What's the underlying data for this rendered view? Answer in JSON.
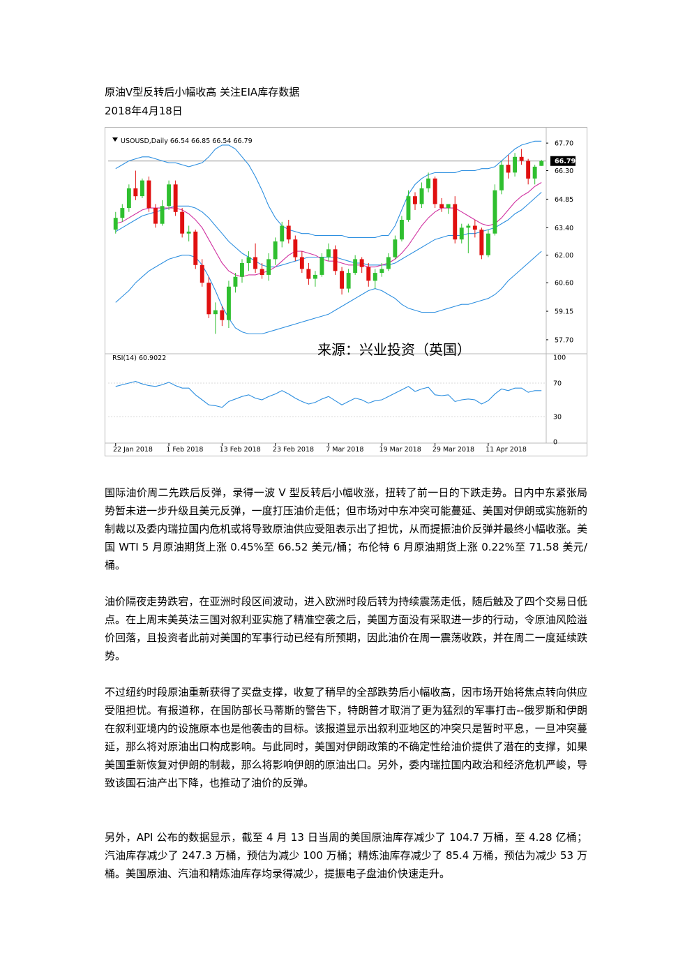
{
  "header": {
    "title": "原油V型反转后小幅收高 关注EIA库存数据",
    "date": "2018年4月18日"
  },
  "chart_data": {
    "type": "candlestick",
    "symbol_line": "USOUSD,Daily  66.54 66.85 66.54 66.79",
    "last_price_label": "66.79",
    "source_label": "来源：兴业投资（英国）",
    "price_axis_ticks": [
      "67.70",
      "66.30",
      "64.85",
      "63.40",
      "62.00",
      "60.60",
      "59.15",
      "57.70"
    ],
    "price_axis_values": [
      67.7,
      66.3,
      64.85,
      63.4,
      62.0,
      60.6,
      59.15,
      57.7
    ],
    "ylim": [
      57.2,
      68.2
    ],
    "rsi_label": "RSI(14) 60.9022",
    "rsi_ticks": [
      "100",
      "70",
      "30",
      "0"
    ],
    "rsi_values": [
      100,
      70,
      30,
      0
    ],
    "date_ticks": [
      "22 Jan 2018",
      "1 Feb 2018",
      "13 Feb 2018",
      "23 Feb 2018",
      "7 Mar 2018",
      "19 Mar 2018",
      "29 Mar 2018",
      "11 Apr 2018"
    ],
    "date_tick_index": [
      0,
      8,
      16,
      24,
      32,
      40,
      48,
      56
    ],
    "candles": [
      {
        "o": 63.3,
        "h": 64.2,
        "l": 63.1,
        "c": 63.9
      },
      {
        "o": 63.9,
        "h": 64.6,
        "l": 63.7,
        "c": 64.4
      },
      {
        "o": 64.4,
        "h": 65.6,
        "l": 64.2,
        "c": 65.4
      },
      {
        "o": 65.4,
        "h": 66.3,
        "l": 64.8,
        "c": 65.0
      },
      {
        "o": 65.0,
        "h": 65.9,
        "l": 64.9,
        "c": 65.8
      },
      {
        "o": 65.8,
        "h": 66.0,
        "l": 64.2,
        "c": 64.4
      },
      {
        "o": 64.4,
        "h": 64.6,
        "l": 63.4,
        "c": 63.6
      },
      {
        "o": 63.6,
        "h": 64.8,
        "l": 63.5,
        "c": 64.5
      },
      {
        "o": 64.5,
        "h": 65.8,
        "l": 64.3,
        "c": 65.6
      },
      {
        "o": 65.6,
        "h": 65.8,
        "l": 64.0,
        "c": 64.2
      },
      {
        "o": 64.2,
        "h": 64.4,
        "l": 62.9,
        "c": 63.1
      },
      {
        "o": 63.1,
        "h": 63.5,
        "l": 62.7,
        "c": 63.2
      },
      {
        "o": 63.2,
        "h": 63.3,
        "l": 61.3,
        "c": 61.5
      },
      {
        "o": 61.5,
        "h": 61.8,
        "l": 60.4,
        "c": 60.6
      },
      {
        "o": 60.6,
        "h": 60.9,
        "l": 58.8,
        "c": 59.0
      },
      {
        "o": 59.0,
        "h": 59.6,
        "l": 58.0,
        "c": 59.2
      },
      {
        "o": 59.2,
        "h": 59.4,
        "l": 58.4,
        "c": 58.7
      },
      {
        "o": 58.7,
        "h": 60.7,
        "l": 58.3,
        "c": 60.4
      },
      {
        "o": 60.4,
        "h": 61.1,
        "l": 60.1,
        "c": 60.9
      },
      {
        "o": 60.9,
        "h": 61.8,
        "l": 60.6,
        "c": 61.6
      },
      {
        "o": 61.6,
        "h": 62.2,
        "l": 61.2,
        "c": 61.9
      },
      {
        "o": 61.9,
        "h": 62.6,
        "l": 61.1,
        "c": 61.3
      },
      {
        "o": 61.3,
        "h": 61.6,
        "l": 60.8,
        "c": 61.0
      },
      {
        "o": 61.0,
        "h": 62.1,
        "l": 60.7,
        "c": 61.8
      },
      {
        "o": 61.8,
        "h": 62.9,
        "l": 61.5,
        "c": 62.7
      },
      {
        "o": 62.7,
        "h": 63.7,
        "l": 62.4,
        "c": 63.5
      },
      {
        "o": 63.5,
        "h": 63.8,
        "l": 62.6,
        "c": 62.8
      },
      {
        "o": 62.8,
        "h": 63.0,
        "l": 61.7,
        "c": 61.9
      },
      {
        "o": 61.9,
        "h": 62.2,
        "l": 61.1,
        "c": 61.3
      },
      {
        "o": 61.3,
        "h": 61.6,
        "l": 60.5,
        "c": 60.8
      },
      {
        "o": 60.8,
        "h": 61.2,
        "l": 60.4,
        "c": 61.0
      },
      {
        "o": 61.0,
        "h": 62.1,
        "l": 60.9,
        "c": 61.9
      },
      {
        "o": 61.9,
        "h": 62.6,
        "l": 61.7,
        "c": 62.3
      },
      {
        "o": 62.3,
        "h": 62.5,
        "l": 61.0,
        "c": 61.2
      },
      {
        "o": 61.2,
        "h": 61.4,
        "l": 60.0,
        "c": 60.3
      },
      {
        "o": 60.3,
        "h": 61.3,
        "l": 60.1,
        "c": 61.1
      },
      {
        "o": 61.1,
        "h": 62.0,
        "l": 61.0,
        "c": 61.8
      },
      {
        "o": 61.8,
        "h": 61.9,
        "l": 61.1,
        "c": 61.4
      },
      {
        "o": 61.4,
        "h": 61.6,
        "l": 60.4,
        "c": 60.7
      },
      {
        "o": 60.7,
        "h": 61.3,
        "l": 60.3,
        "c": 61.1
      },
      {
        "o": 61.1,
        "h": 61.6,
        "l": 60.9,
        "c": 61.3
      },
      {
        "o": 61.3,
        "h": 62.1,
        "l": 61.2,
        "c": 61.9
      },
      {
        "o": 61.9,
        "h": 63.0,
        "l": 61.8,
        "c": 62.8
      },
      {
        "o": 62.8,
        "h": 64.0,
        "l": 62.7,
        "c": 63.8
      },
      {
        "o": 63.8,
        "h": 65.3,
        "l": 63.7,
        "c": 65.0
      },
      {
        "o": 65.0,
        "h": 65.2,
        "l": 64.3,
        "c": 64.6
      },
      {
        "o": 64.6,
        "h": 65.7,
        "l": 64.4,
        "c": 65.4
      },
      {
        "o": 65.4,
        "h": 66.2,
        "l": 65.2,
        "c": 65.9
      },
      {
        "o": 65.9,
        "h": 66.0,
        "l": 64.4,
        "c": 64.6
      },
      {
        "o": 64.6,
        "h": 64.9,
        "l": 64.2,
        "c": 64.4
      },
      {
        "o": 64.4,
        "h": 64.6,
        "l": 64.1,
        "c": 64.6
      },
      {
        "o": 64.6,
        "h": 65.0,
        "l": 62.6,
        "c": 62.8
      },
      {
        "o": 62.8,
        "h": 63.6,
        "l": 62.6,
        "c": 63.4
      },
      {
        "o": 63.4,
        "h": 63.6,
        "l": 62.1,
        "c": 63.5
      },
      {
        "o": 63.5,
        "h": 63.8,
        "l": 62.9,
        "c": 63.3
      },
      {
        "o": 63.3,
        "h": 63.4,
        "l": 61.8,
        "c": 62.0
      },
      {
        "o": 62.0,
        "h": 63.3,
        "l": 61.9,
        "c": 63.1
      },
      {
        "o": 63.1,
        "h": 65.6,
        "l": 63.0,
        "c": 65.3
      },
      {
        "o": 65.3,
        "h": 66.8,
        "l": 65.1,
        "c": 66.6
      },
      {
        "o": 66.6,
        "h": 67.1,
        "l": 65.9,
        "c": 66.2
      },
      {
        "o": 66.2,
        "h": 67.2,
        "l": 66.0,
        "c": 67.0
      },
      {
        "o": 67.0,
        "h": 67.4,
        "l": 66.6,
        "c": 66.8
      },
      {
        "o": 66.8,
        "h": 66.9,
        "l": 65.6,
        "c": 65.9
      },
      {
        "o": 65.9,
        "h": 66.6,
        "l": 65.6,
        "c": 66.5
      },
      {
        "o": 66.54,
        "h": 66.85,
        "l": 66.54,
        "c": 66.79
      }
    ],
    "bb_upper": [
      66.4,
      66.6,
      66.8,
      66.9,
      67.0,
      67.0,
      66.9,
      66.8,
      66.7,
      66.7,
      66.6,
      66.5,
      66.6,
      66.7,
      67.0,
      67.4,
      67.6,
      67.6,
      67.4,
      67.0,
      66.6,
      66.0,
      65.3,
      64.5,
      63.9,
      63.5,
      63.3,
      63.2,
      63.1,
      63.1,
      63.0,
      63.0,
      63.0,
      63.0,
      63.0,
      62.9,
      62.9,
      62.9,
      62.9,
      62.9,
      63.0,
      63.0,
      63.5,
      64.3,
      65.1,
      65.6,
      65.9,
      66.1,
      66.2,
      66.2,
      66.2,
      66.2,
      66.3,
      66.3,
      66.3,
      66.4,
      66.4,
      66.5,
      66.8,
      67.1,
      67.4,
      67.6,
      67.7,
      67.8,
      67.8
    ],
    "bb_mid": [
      63.2,
      63.4,
      63.6,
      63.8,
      64.0,
      64.1,
      64.2,
      64.3,
      64.4,
      64.5,
      64.5,
      64.5,
      64.4,
      64.2,
      63.9,
      63.5,
      63.1,
      62.7,
      62.4,
      62.1,
      61.9,
      61.7,
      61.5,
      61.4,
      61.4,
      61.5,
      61.6,
      61.7,
      61.8,
      61.9,
      61.9,
      61.9,
      61.9,
      61.9,
      61.8,
      61.7,
      61.6,
      61.6,
      61.5,
      61.5,
      61.5,
      61.5,
      61.6,
      61.8,
      62.0,
      62.2,
      62.4,
      62.6,
      62.8,
      62.9,
      63.0,
      63.0,
      63.0,
      63.1,
      63.1,
      63.2,
      63.3,
      63.4,
      63.6,
      63.8,
      64.1,
      64.3,
      64.6,
      64.9,
      65.2
    ],
    "bb_lower": [
      59.6,
      59.9,
      60.2,
      60.6,
      60.9,
      61.2,
      61.4,
      61.6,
      61.8,
      61.9,
      62.0,
      62.0,
      61.9,
      61.5,
      60.9,
      60.2,
      59.4,
      58.8,
      58.3,
      58.1,
      58.0,
      58.0,
      58.0,
      58.1,
      58.2,
      58.3,
      58.4,
      58.5,
      58.6,
      58.7,
      58.8,
      58.9,
      59.0,
      59.2,
      59.4,
      59.6,
      59.8,
      60.0,
      60.2,
      60.3,
      60.2,
      60.0,
      59.8,
      59.5,
      59.3,
      59.2,
      59.1,
      59.1,
      59.1,
      59.2,
      59.3,
      59.4,
      59.5,
      59.5,
      59.6,
      59.7,
      59.8,
      60.0,
      60.3,
      60.7,
      61.0,
      61.3,
      61.6,
      61.9,
      62.2
    ],
    "ma_short": [
      63.6,
      63.7,
      63.9,
      64.1,
      64.3,
      64.4,
      64.4,
      64.4,
      64.4,
      64.4,
      64.3,
      64.1,
      63.8,
      63.4,
      62.8,
      62.2,
      61.6,
      61.2,
      61.0,
      60.9,
      61.0,
      61.0,
      61.1,
      61.2,
      61.4,
      61.7,
      62.0,
      62.2,
      62.2,
      62.1,
      62.0,
      61.8,
      61.7,
      61.7,
      61.6,
      61.5,
      61.5,
      61.5,
      61.4,
      61.4,
      61.5,
      61.6,
      61.8,
      62.1,
      62.5,
      63.0,
      63.5,
      63.9,
      64.2,
      64.4,
      64.4,
      64.4,
      64.2,
      64.0,
      63.8,
      63.6,
      63.5,
      63.6,
      63.9,
      64.3,
      64.7,
      65.0,
      65.2,
      65.5,
      65.7
    ],
    "rsi": [
      66,
      68,
      70,
      72,
      69,
      67,
      66,
      68,
      71,
      67,
      64,
      64,
      56,
      50,
      44,
      43,
      41,
      48,
      51,
      54,
      56,
      52,
      50,
      54,
      57,
      61,
      57,
      52,
      48,
      45,
      47,
      51,
      54,
      49,
      44,
      48,
      52,
      50,
      46,
      49,
      50,
      54,
      58,
      62,
      66,
      60,
      63,
      65,
      56,
      55,
      56,
      48,
      50,
      51,
      50,
      45,
      49,
      57,
      63,
      61,
      64,
      64,
      59,
      61,
      61
    ],
    "colors": {
      "up": "#2fbf2f",
      "down": "#e01010",
      "bollinger": "#2d8fe0",
      "ma": "#d030a0",
      "rsi_line": "#2d8fe0",
      "grid": "#b8b8b8",
      "current_price_bg": "#000000"
    }
  },
  "paragraphs": [
    "国际油价周二先跌后反弹，录得一波 V 型反转后小幅收涨，扭转了前一日的下跌走势。日内中东紧张局势暂未进一步升级且美元反弹，一度打压油价走低；但市场对中东冲突可能蔓延、美国对伊朗或实施新的制裁以及委内瑞拉国内危机或将导致原油供应受阻表示出了担忧，从而提振油价反弹并最终小幅收涨。美国 WTI 5 月原油期货上涨 0.45%至 66.52 美元/桶；布伦特 6 月原油期货上涨 0.22%至 71.58 美元/桶。",
    "油价隔夜走势跌宕，在亚洲时段区间波动，进入欧洲时段后转为持续震荡走低，随后触及了四个交易日低点。在上周末美英法三国对叙利亚实施了精准空袭之后，美国方面没有采取进一步的行动，令原油风险溢价回落，且投资者此前对美国的军事行动已经有所预期，因此油价在周一震荡收跌，并在周二一度延续跌势。",
    "不过纽约时段原油重新获得了买盘支撑，收复了稍早的全部跌势后小幅收高，因市场开始将焦点转向供应受阻担忧。有报道称，在国防部长马蒂斯的警告下，特朗普才取消了更为猛烈的军事打击--俄罗斯和伊朗在叙利亚境内的设施原本也是他袭击的目标。该报道显示出叙利亚地区的冲突只是暂时平息，一旦冲突蔓延，那么将对原油出口构成影响。与此同时，美国对伊朗政策的不确定性给油价提供了潜在的支撑，如果美国重新恢复对伊朗的制裁，那么将影响伊朗的原油出口。另外，委内瑞拉国内政治和经济危机严峻，导致该国石油产出下降，也推动了油价的反弹。",
    "另外，API 公布的数据显示，截至 4 月 13 日当周的美国原油库存减少了 104.7 万桶，至 4.28 亿桶；汽油库存减少了 247.3 万桶，预估为减少 100 万桶；精炼油库存减少了 85.4 万桶，预估为减少 53 万桶。美国原油、汽油和精炼油库存均录得减少，提振电子盘油价快速走升。"
  ]
}
